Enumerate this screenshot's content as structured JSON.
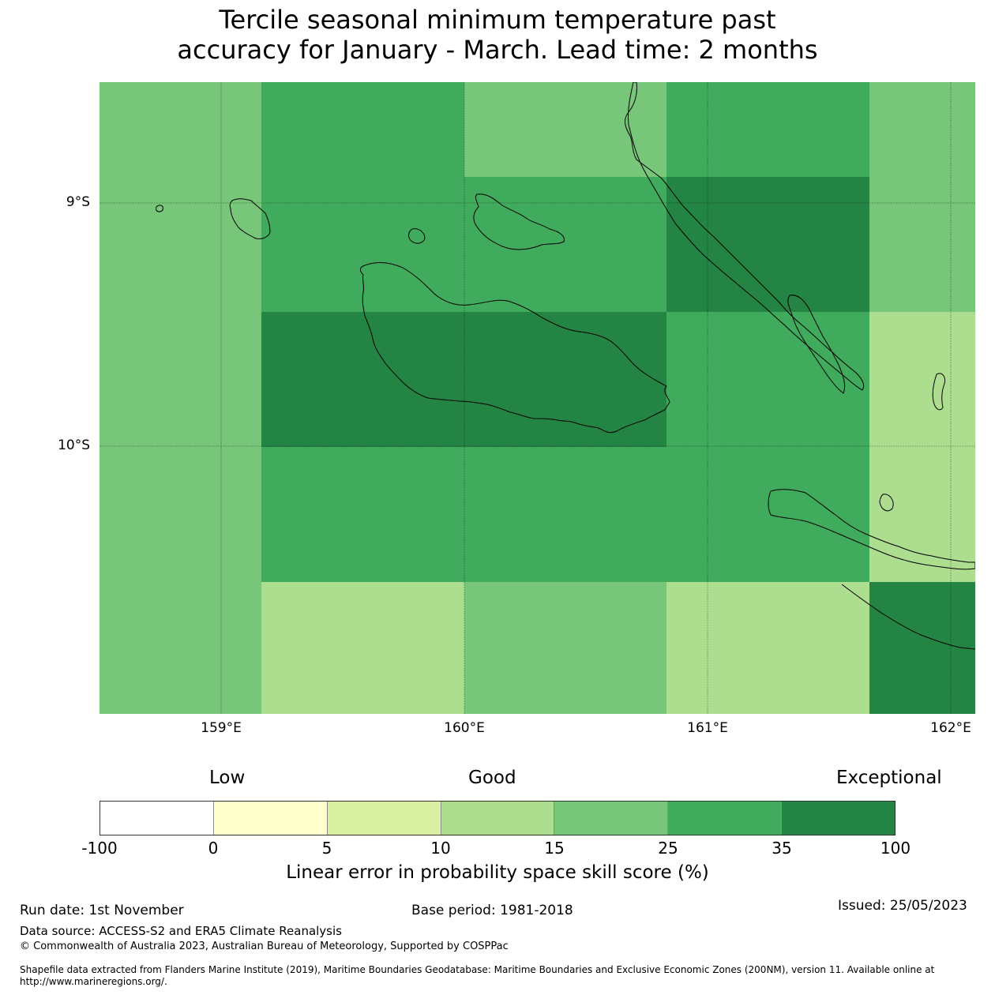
{
  "title": {
    "line1": "Tercile seasonal minimum temperature past",
    "line2": "accuracy for January - March. Lead time: 2 months"
  },
  "map": {
    "lat_labels": [
      "9°S",
      "10°S"
    ],
    "lon_labels": [
      "159°E",
      "160°E",
      "161°E",
      "162°E"
    ],
    "grid_colors": [
      [
        "#78c679",
        "#41ab5d",
        "#41ab5d",
        "#78c679",
        "#41ab5d",
        "#78c679"
      ],
      [
        "#78c679",
        "#41ab5d",
        "#41ab5d",
        "#41ab5d",
        "#238443",
        "#78c679"
      ],
      [
        "#78c679",
        "#238443",
        "#238443",
        "#238443",
        "#41ab5d",
        "#addd8e"
      ],
      [
        "#78c679",
        "#41ab5d",
        "#41ab5d",
        "#41ab5d",
        "#41ab5d",
        "#addd8e"
      ],
      [
        "#78c679",
        "#addd8e",
        "#addd8e",
        "#78c679",
        "#addd8e",
        "#238443"
      ]
    ]
  },
  "colorbar": {
    "headers": {
      "low": "Low",
      "good": "Good",
      "exceptional": "Exceptional"
    },
    "colors": [
      "#ffffff",
      "#ffffcc",
      "#d9f0a3",
      "#addd8e",
      "#78c679",
      "#41ab5d",
      "#238443"
    ],
    "ticks": [
      "-100",
      "0",
      "5",
      "10",
      "15",
      "25",
      "35",
      "100"
    ],
    "label": "Linear error in probability space skill score (%)"
  },
  "footer": {
    "run_date": "Run date: 1st November",
    "base_period": "Base period: 1981-2018",
    "issued": "Issued: 25/05/2023",
    "data_source": "Data source: ACCESS-S2 and ERA5 Climate Reanalysis",
    "copyright": "© Commonwealth of Australia 2023, Australian Bureau of Meteorology, Supported by COSPPac",
    "shapefile": "Shapefile data extracted from Flanders Marine Institute (2019), Maritime Boundaries Geodatabase: Maritime Boundaries and Exclusive Economic Zones (200NM), version 11. Available online at",
    "url": "http://www.marineregions.org/."
  }
}
